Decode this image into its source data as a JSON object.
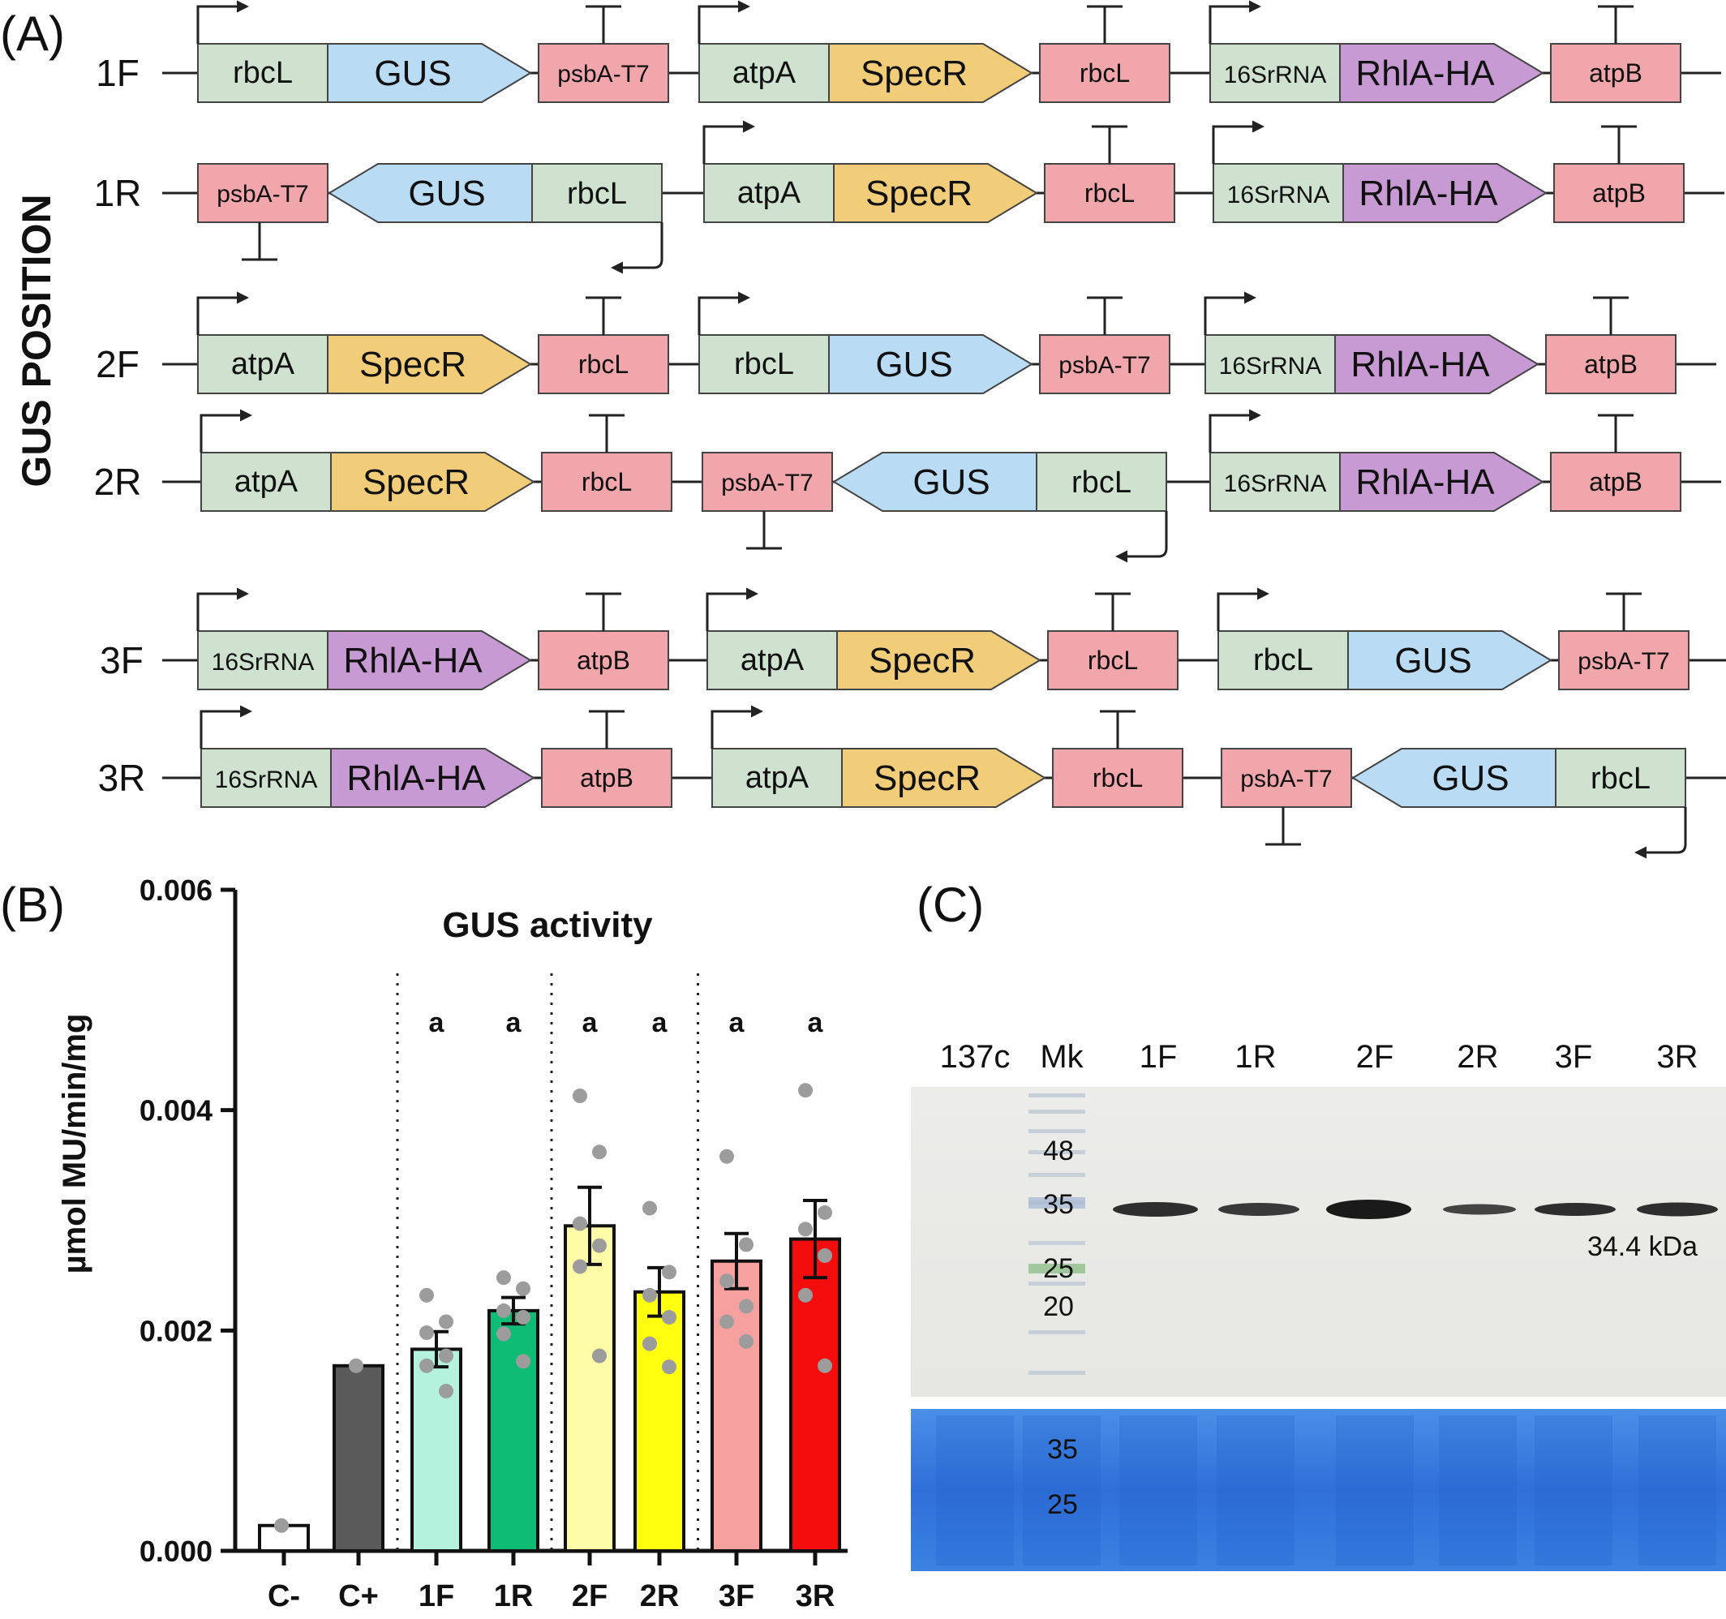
{
  "panels": {
    "a": "(A)",
    "b": "(B)",
    "c": "(C)"
  },
  "panel_a": {
    "side_title": "GUS POSITION",
    "colors": {
      "promoter": "#cfe2d0",
      "gus": "#b9dcf4",
      "specr": "#f2cd79",
      "rhla": "#c79ad3",
      "terminator": "#f0a6aa",
      "outline": "#444444"
    },
    "rows": [
      {
        "label": "1F",
        "cassettes": [
          {
            "dir": "F",
            "promoter": "rbcL",
            "gene": "GUS",
            "gene_type": "gus",
            "terminator": "psbA-T7"
          },
          {
            "dir": "F",
            "promoter": "atpA",
            "gene": "SpecR",
            "gene_type": "specr",
            "terminator": "rbcL"
          },
          {
            "dir": "F",
            "promoter": "16SrRNA",
            "gene": "RhlA-HA",
            "gene_type": "rhla",
            "terminator": "atpB"
          }
        ]
      },
      {
        "label": "1R",
        "cassettes": [
          {
            "dir": "R",
            "promoter": "rbcL",
            "gene": "GUS",
            "gene_type": "gus",
            "terminator": "psbA-T7"
          },
          {
            "dir": "F",
            "promoter": "atpA",
            "gene": "SpecR",
            "gene_type": "specr",
            "terminator": "rbcL"
          },
          {
            "dir": "F",
            "promoter": "16SrRNA",
            "gene": "RhlA-HA",
            "gene_type": "rhla",
            "terminator": "atpB"
          }
        ]
      },
      {
        "label": "2F",
        "cassettes": [
          {
            "dir": "F",
            "promoter": "atpA",
            "gene": "SpecR",
            "gene_type": "specr",
            "terminator": "rbcL"
          },
          {
            "dir": "F",
            "promoter": "rbcL",
            "gene": "GUS",
            "gene_type": "gus",
            "terminator": "psbA-T7"
          },
          {
            "dir": "F",
            "promoter": "16SrRNA",
            "gene": "RhlA-HA",
            "gene_type": "rhla",
            "terminator": "atpB"
          }
        ]
      },
      {
        "label": "2R",
        "cassettes": [
          {
            "dir": "F",
            "promoter": "atpA",
            "gene": "SpecR",
            "gene_type": "specr",
            "terminator": "rbcL"
          },
          {
            "dir": "R",
            "promoter": "rbcL",
            "gene": "GUS",
            "gene_type": "gus",
            "terminator": "psbA-T7"
          },
          {
            "dir": "F",
            "promoter": "16SrRNA",
            "gene": "RhlA-HA",
            "gene_type": "rhla",
            "terminator": "atpB"
          }
        ]
      },
      {
        "label": "3F",
        "cassettes": [
          {
            "dir": "F",
            "promoter": "16SrRNA",
            "gene": "RhlA-HA",
            "gene_type": "rhla",
            "terminator": "atpB"
          },
          {
            "dir": "F",
            "promoter": "atpA",
            "gene": "SpecR",
            "gene_type": "specr",
            "terminator": "rbcL"
          },
          {
            "dir": "F",
            "promoter": "rbcL",
            "gene": "GUS",
            "gene_type": "gus",
            "terminator": "psbA-T7"
          }
        ]
      },
      {
        "label": "3R",
        "cassettes": [
          {
            "dir": "F",
            "promoter": "16SrRNA",
            "gene": "RhlA-HA",
            "gene_type": "rhla",
            "terminator": "atpB"
          },
          {
            "dir": "F",
            "promoter": "atpA",
            "gene": "SpecR",
            "gene_type": "specr",
            "terminator": "rbcL"
          },
          {
            "dir": "R",
            "promoter": "rbcL",
            "gene": "GUS",
            "gene_type": "gus",
            "terminator": "psbA-T7"
          }
        ]
      }
    ]
  },
  "chart_data": {
    "type": "bar",
    "title": "GUS activity",
    "ylabel": "µmol MU/min/mg",
    "xlabel": "",
    "ylim": [
      0,
      0.006
    ],
    "yticks": [
      "0.000",
      "0.002",
      "0.004",
      "0.006"
    ],
    "categories": [
      "C-",
      "C+",
      "1F",
      "1R",
      "2F",
      "2R",
      "3F",
      "3R"
    ],
    "values": [
      0.00023,
      0.00168,
      0.00183,
      0.00218,
      0.00295,
      0.00235,
      0.00263,
      0.00283
    ],
    "errors": [
      0,
      0,
      0.00016,
      0.00012,
      0.00035,
      0.00022,
      0.00025,
      0.00035
    ],
    "significance": [
      "",
      "",
      "a",
      "a",
      "a",
      "a",
      "a",
      "a"
    ],
    "points": [
      [
        0.00023
      ],
      [
        0.00168
      ],
      [
        0.00232,
        0.00208,
        0.00198,
        0.00177,
        0.00168,
        0.00145
      ],
      [
        0.00248,
        0.00238,
        0.00218,
        0.00212,
        0.00197,
        0.00172
      ],
      [
        0.00413,
        0.00362,
        0.00297,
        0.00277,
        0.00258,
        0.00177
      ],
      [
        0.00311,
        0.00253,
        0.00232,
        0.00212,
        0.00188,
        0.00167
      ],
      [
        0.00358,
        0.00278,
        0.00245,
        0.00222,
        0.00208,
        0.0019
      ],
      [
        0.00418,
        0.00307,
        0.00292,
        0.00268,
        0.00232,
        0.00168
      ]
    ],
    "bar_colors": [
      "#ffffff",
      "#5a5a5a",
      "#b4f2de",
      "#0ebc75",
      "#fffca8",
      "#ffff0f",
      "#f6a0a0",
      "#f50d0d"
    ],
    "group_separators": [
      1.5,
      3.5,
      5.5
    ]
  },
  "panel_c": {
    "lanes": [
      "137c",
      "Mk",
      "1F",
      "1R",
      "2F",
      "2R",
      "3F",
      "3R"
    ],
    "marker_labels": [
      "48",
      "35",
      "25",
      "20"
    ],
    "band_label": "34.4 kDa",
    "stain_marker_labels": [
      "35",
      "25"
    ]
  }
}
